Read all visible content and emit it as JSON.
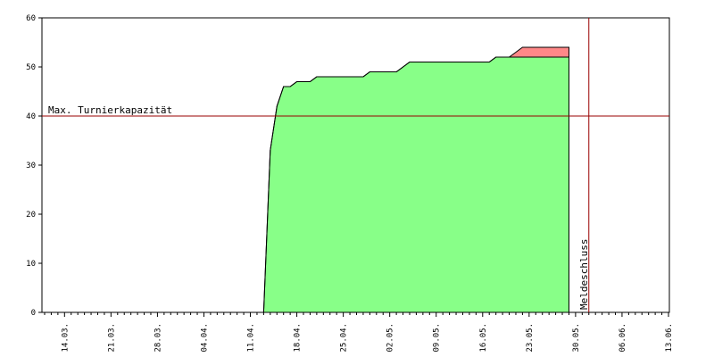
{
  "chart_data": {
    "type": "area",
    "stacked": true,
    "categories": [
      null,
      null,
      null,
      "14.03.",
      null,
      null,
      null,
      null,
      null,
      null,
      "21.03.",
      null,
      null,
      null,
      null,
      null,
      null,
      "28.03.",
      null,
      null,
      null,
      null,
      null,
      null,
      "04.04.",
      null,
      null,
      null,
      null,
      null,
      null,
      "11.04.",
      null,
      null,
      null,
      null,
      null,
      null,
      "18.04.",
      null,
      null,
      null,
      null,
      null,
      null,
      "25.04.",
      null,
      null,
      null,
      null,
      null,
      null,
      "02.05.",
      null,
      null,
      null,
      null,
      null,
      null,
      "09.05.",
      null,
      null,
      null,
      null,
      null,
      null,
      "16.05.",
      null,
      null,
      null,
      null,
      null,
      null,
      "23.05.",
      null,
      null,
      null,
      null,
      null,
      null,
      "30.05.",
      null,
      null,
      null,
      null,
      null,
      null,
      "06.06.",
      null,
      null,
      null,
      null,
      null,
      null,
      "13.06."
    ],
    "series": [
      {
        "color": "#88ff88",
        "values": [
          0,
          0,
          0,
          0,
          0,
          0,
          0,
          0,
          0,
          0,
          0,
          0,
          0,
          0,
          0,
          0,
          0,
          0,
          0,
          0,
          0,
          0,
          0,
          0,
          0,
          0,
          0,
          0,
          0,
          0,
          0,
          0,
          0,
          0,
          33,
          42,
          46,
          46,
          47,
          47,
          47,
          48,
          48,
          48,
          48,
          48,
          48,
          48,
          48,
          49,
          49,
          49,
          49,
          49,
          50,
          51,
          51,
          51,
          51,
          51,
          51,
          51,
          51,
          51,
          51,
          51,
          51,
          51,
          52,
          52,
          52,
          52,
          52,
          52,
          52,
          52,
          52,
          52,
          52,
          52,
          null,
          null,
          null,
          null,
          null,
          null,
          null,
          null,
          null,
          null,
          null,
          null,
          null,
          null,
          null
        ]
      },
      {
        "color": "#ff8888",
        "values": [
          0,
          0,
          0,
          0,
          0,
          0,
          0,
          0,
          0,
          0,
          0,
          0,
          0,
          0,
          0,
          0,
          0,
          0,
          0,
          0,
          0,
          0,
          0,
          0,
          0,
          0,
          0,
          0,
          0,
          0,
          0,
          0,
          0,
          0,
          0,
          0,
          0,
          0,
          0,
          0,
          0,
          0,
          0,
          0,
          0,
          0,
          0,
          0,
          0,
          0,
          0,
          0,
          0,
          0,
          0,
          0,
          0,
          0,
          0,
          0,
          0,
          0,
          0,
          0,
          0,
          0,
          0,
          0,
          0,
          0,
          0,
          1,
          2,
          2,
          2,
          2,
          2,
          2,
          2,
          2,
          null,
          null,
          null,
          null,
          null,
          null,
          null,
          null,
          null,
          null,
          null,
          null,
          null,
          null,
          null
        ]
      }
    ],
    "ylim": [
      0,
      60
    ],
    "yticks": [
      0,
      10,
      20,
      30,
      40,
      50,
      60
    ],
    "hline": {
      "value": 40,
      "label": "Max. Turnierkapazität",
      "color": "#990000"
    },
    "vline": {
      "index": 82,
      "label": "Meldeschluss",
      "color": "#990000"
    }
  }
}
